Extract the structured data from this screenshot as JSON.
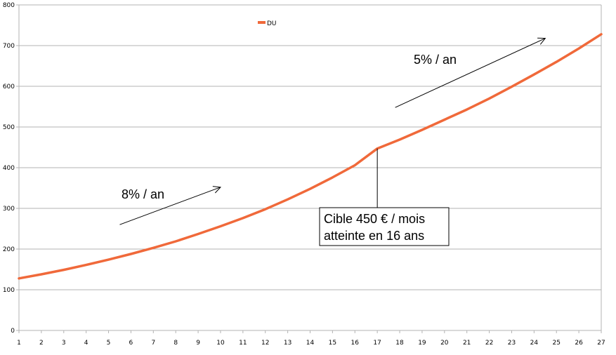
{
  "chart_data": {
    "type": "line",
    "title": "",
    "xlabel": "",
    "ylabel": "",
    "ylim": [
      0,
      800
    ],
    "xlim": [
      1,
      27
    ],
    "yticks": [
      "0",
      "100",
      "200",
      "300",
      "400",
      "500",
      "600",
      "700",
      "800"
    ],
    "xticks": [
      "1",
      "2",
      "3",
      "4",
      "5",
      "6",
      "7",
      "8",
      "9",
      "10",
      "11",
      "12",
      "13",
      "14",
      "15",
      "16",
      "17",
      "18",
      "19",
      "20",
      "21",
      "22",
      "23",
      "24",
      "25",
      "26",
      "27"
    ],
    "grid": true,
    "legend": "top-center",
    "series": [
      {
        "name": "DU",
        "color": "#f0693a",
        "x": [
          1,
          2,
          3,
          4,
          5,
          6,
          7,
          8,
          9,
          10,
          11,
          12,
          13,
          14,
          15,
          16,
          17,
          18,
          19,
          20,
          21,
          22,
          23,
          24,
          25,
          26,
          27
        ],
        "values": [
          128,
          138,
          149,
          161,
          174,
          188,
          203,
          219,
          237,
          256,
          276,
          298,
          322,
          348,
          376,
          406,
          447,
          469,
          493,
          518,
          543,
          570,
          599,
          629,
          660,
          693,
          728
        ]
      }
    ],
    "annotations": [
      {
        "text": "8% / an",
        "from": [
          5.5,
          260
        ],
        "to": [
          10.0,
          352
        ]
      },
      {
        "text": "5% / an",
        "from": [
          17.8,
          548
        ],
        "to": [
          24.5,
          718
        ]
      },
      {
        "lines": [
          "Cible 450 € / mois",
          "atteinte en 16 ans"
        ],
        "point": [
          17,
          447
        ]
      }
    ]
  }
}
